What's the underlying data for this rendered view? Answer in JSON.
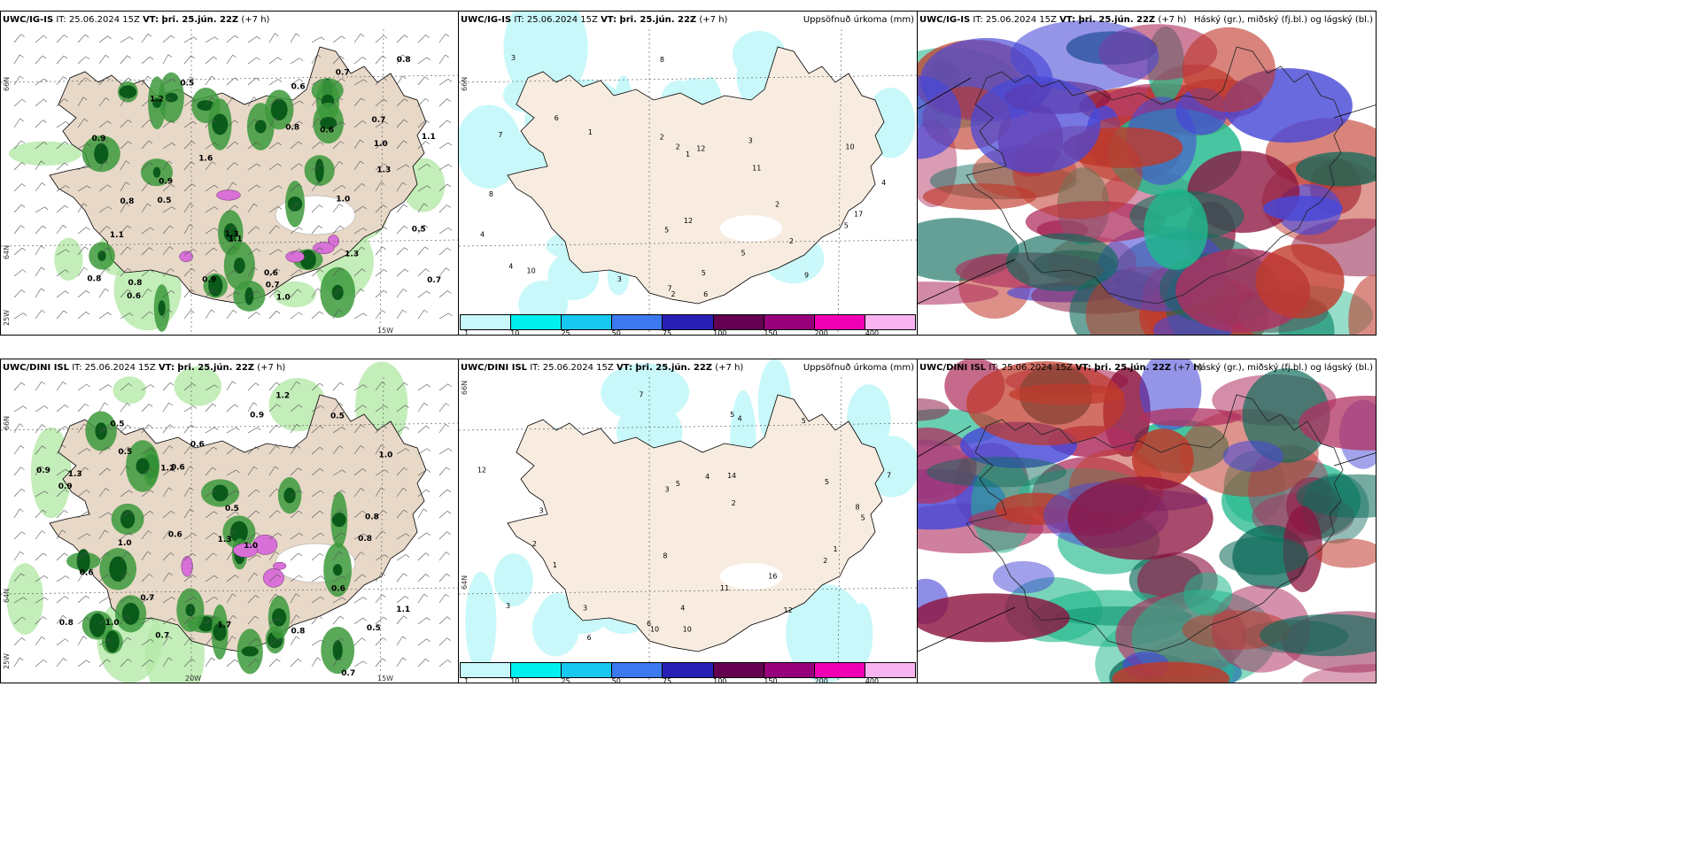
{
  "rows": [
    {
      "model": "UWC/IG-IS",
      "it_label": "IT: 25.06.2024 15Z",
      "vt_label": "VT: þri. 25.jún. 22Z",
      "lead": "(+7 h)"
    },
    {
      "model": "UWC/DINI ISL",
      "it_label": "IT: 25.06.2024 15Z",
      "vt_label": "VT: þri. 25.jún. 22Z",
      "lead": "(+7 h)"
    }
  ],
  "precip_title": "Uppsöfnuð úrkoma (mm)",
  "cloud_title": "Háský (gr.), miðský (fj.bl.) og lágský (bl.)",
  "axis_labels": {
    "lat66": "66N",
    "lat64": "64N",
    "lon25": "25W",
    "lon20": "20W",
    "lon15": "15W"
  },
  "colorbar": {
    "ticks": [
      "1",
      "10",
      "25",
      "50",
      "75",
      "100",
      "150",
      "200",
      "400"
    ],
    "colors": [
      "#c8f8fa",
      "#00f0f0",
      "#18c8f0",
      "#3c78f0",
      "#2820b4",
      "#640050",
      "#96007a",
      "#f000b4",
      "#f8b4f0"
    ]
  },
  "palette": {
    "land": "#e8d8c8",
    "land_light": "#f8ece0",
    "precip_light": "#c8f8fa",
    "green_dark": "#0a5a1a",
    "green_mid": "#3c9a3c",
    "green_light": "#b4e8a8",
    "magenta": "#d870d8",
    "cloud_red": "#8c1440",
    "cloud_green": "#20b88c",
    "cloud_blue": "#4848d8"
  },
  "left_top_values": [
    "0.7",
    "0.8",
    "1.0",
    "0.9",
    "0.6",
    "1.3",
    "0.5",
    "0.8",
    "1.1",
    "0.7",
    "1.6",
    "0.6",
    "0.8",
    "1.1",
    "0.5",
    "0.9",
    "1.3",
    "0.8",
    "0.7",
    "1.0",
    "0.6",
    "1.2",
    "0.9",
    "0.5",
    "1.3",
    "0.8",
    "0.7",
    "1.0",
    "0.6",
    "1.1"
  ],
  "left_bottom_values": [
    "0.8",
    "1.0",
    "0.5",
    "0.6",
    "0.7",
    "1.2",
    "0.9",
    "0.5",
    "1.7",
    "0.6",
    "1.0",
    "0.8",
    "0.9",
    "1.3",
    "0.5",
    "0.6",
    "1.0",
    "0.7",
    "1.1",
    "0.8",
    "1.3",
    "0.5",
    "0.6",
    "0.7",
    "1.0",
    "0.9",
    "0.8",
    "1.2",
    "0.6",
    "0.5"
  ],
  "mid_top_values": [
    "2",
    "4",
    "5",
    "3",
    "2",
    "1",
    "4",
    "3",
    "6",
    "8",
    "2",
    "5",
    "12",
    "10",
    "11",
    "17",
    "7",
    "10",
    "12",
    "9",
    "6",
    "5",
    "8",
    "4",
    "3",
    "2",
    "1",
    "5",
    "7",
    "2"
  ],
  "mid_bottom_values": [
    "4",
    "5",
    "3",
    "2",
    "1",
    "6",
    "5",
    "8",
    "12",
    "10",
    "11",
    "7",
    "5",
    "14",
    "16",
    "3",
    "2",
    "12",
    "10",
    "5",
    "4",
    "3",
    "6",
    "8",
    "7",
    "2",
    "1",
    "3",
    "4",
    "5"
  ]
}
